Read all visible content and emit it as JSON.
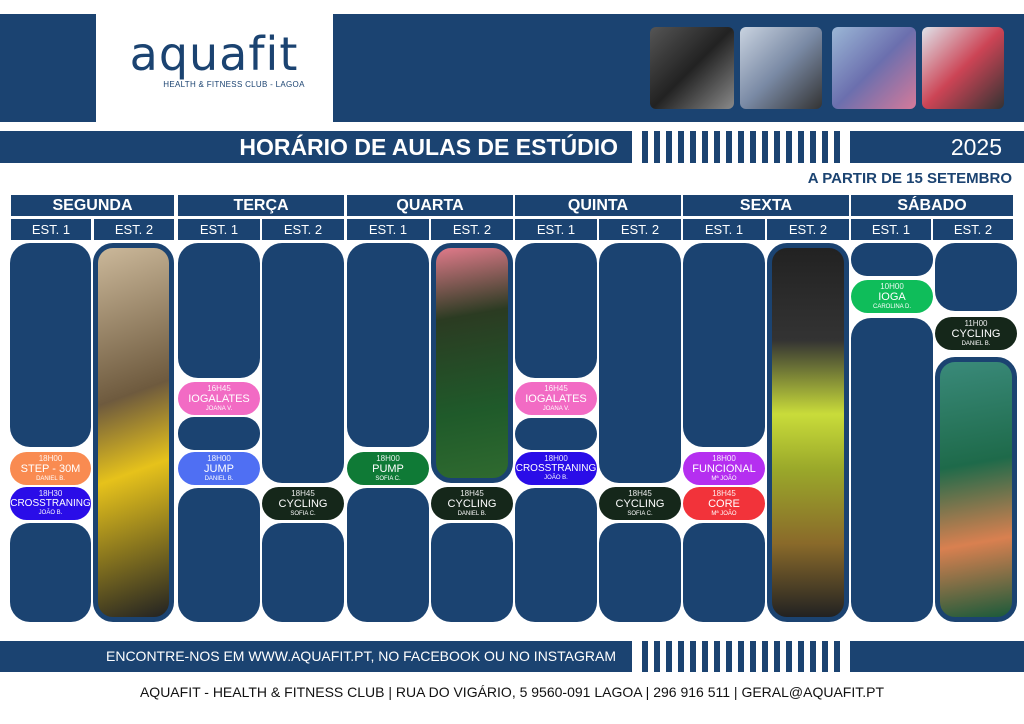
{
  "header": {
    "logo_text": "aquafit",
    "logo_subtitle": "HEALTH & FITNESS CLUB - LAGOA",
    "title": "HORÁRIO DE AULAS DE ESTÚDIO",
    "year": "2025",
    "start": "A PARTIR DE 15 SETEMBRO"
  },
  "days": [
    "SEGUNDA",
    "TERÇA",
    "QUARTA",
    "QUINTA",
    "SEXTA",
    "SÁBADO"
  ],
  "studios": [
    "EST. 1",
    "EST. 2"
  ],
  "classes": [
    {
      "time": "18H00",
      "name": "STEP - 30M",
      "instructor": "DANIEL B.",
      "color": "#f98b51"
    },
    {
      "time": "18H30",
      "name": "CROSSTRANING",
      "instructor": "JOÃO B.",
      "color": "#2a0de8"
    },
    {
      "time": "16H45",
      "name": "IOGALATES",
      "instructor": "JOANA V.",
      "color": "#f26bc4"
    },
    {
      "time": "18H00",
      "name": "JUMP",
      "instructor": "DANIEL B.",
      "color": "#4f6ff3"
    },
    {
      "time": "18H45",
      "name": "CYCLING",
      "instructor": "SOFIA C.",
      "color": "#15271a"
    },
    {
      "time": "18H00",
      "name": "PUMP",
      "instructor": "SOFIA C.",
      "color": "#0f7a36"
    },
    {
      "time": "18H45",
      "name": "CYCLING",
      "instructor": "DANIEL B.",
      "color": "#15271a"
    },
    {
      "time": "16H45",
      "name": "IOGALATES",
      "instructor": "JOANA V.",
      "color": "#f26bc4"
    },
    {
      "time": "18H00",
      "name": "CROSSTRANING",
      "instructor": "JOÃO B.",
      "color": "#2a0de8"
    },
    {
      "time": "18H45",
      "name": "CYCLING",
      "instructor": "SOFIA C.",
      "color": "#15271a"
    },
    {
      "time": "18H00",
      "name": "FUNCIONAL",
      "instructor": "Mª JOÃO",
      "color": "#b52ff0"
    },
    {
      "time": "18H45",
      "name": "CORE",
      "instructor": "Mª JOÃO",
      "color": "#f2333a"
    },
    {
      "time": "10H00",
      "name": "IOGA",
      "instructor": "CAROLINA D.",
      "color": "#0fbd5a"
    },
    {
      "time": "11H00",
      "name": "CYCLING",
      "instructor": "DANIEL B.",
      "color": "#15271a"
    }
  ],
  "footer": {
    "contact": "ENCONTRE-NOS EM WWW.AQUAFIT.PT, NO FACEBOOK OU NO INSTAGRAM",
    "address": "AQUAFIT - HEALTH & FITNESS CLUB | RUA DO VIGÁRIO, 5 9560-091 LAGOA | 296 916 511 | GERAL@AQUAFIT.PT"
  },
  "colors": {
    "navy": "#1b4371"
  }
}
